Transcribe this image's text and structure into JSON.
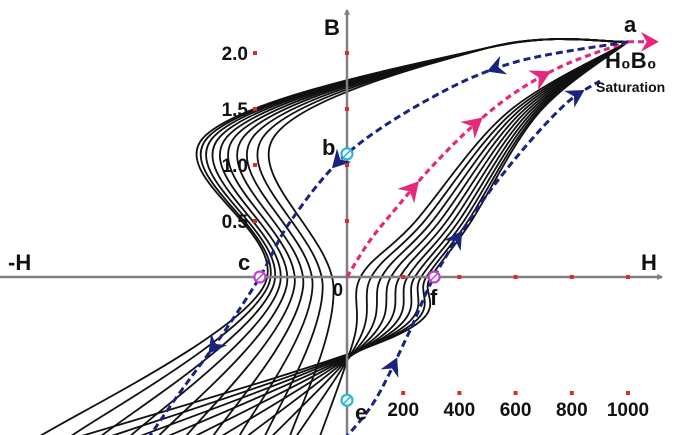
{
  "chart_data": {
    "type": "line",
    "title": "",
    "xlabel": "H",
    "xlabel_negative": "-H",
    "ylabel": "B",
    "origin_label": "0",
    "x_ticks": [
      200,
      400,
      600,
      800,
      1000
    ],
    "y_ticks": [
      "0.5",
      "1.0",
      "1.5",
      "2.0"
    ],
    "xlim": [
      -1220,
      1120
    ],
    "ylim": [
      -1.45,
      2.35
    ],
    "saturation": {
      "point_label": "a",
      "formula": "H₀B₀",
      "text": "Saturation"
    },
    "points": [
      {
        "label": "a",
        "x": 1000,
        "y": 2.1
      },
      {
        "label": "b",
        "x": 0,
        "y": 1.1
      },
      {
        "label": "c",
        "x": -310,
        "y": 0
      },
      {
        "label": "e",
        "x": 0,
        "y": -1.1
      },
      {
        "label": "f",
        "x": 310,
        "y": 0
      }
    ],
    "initial_magnetization_curve": [
      [
        0,
        0
      ],
      [
        80,
        0.32
      ],
      [
        180,
        0.63
      ],
      [
        300,
        0.98
      ],
      [
        440,
        1.33
      ],
      [
        600,
        1.65
      ],
      [
        780,
        1.9
      ],
      [
        1000,
        2.1
      ]
    ],
    "descending_branch": [
      [
        1000,
        2.1
      ],
      [
        600,
        1.92
      ],
      [
        300,
        1.6
      ],
      [
        0,
        1.1
      ],
      [
        -200,
        0.5
      ],
      [
        -310,
        0
      ],
      [
        -440,
        -0.5
      ],
      [
        -600,
        -1.05
      ],
      [
        -710,
        -1.45
      ]
    ],
    "ascending_branch": [
      [
        -10,
        -1.45
      ],
      [
        100,
        -1.1
      ],
      [
        220,
        -0.5
      ],
      [
        310,
        0
      ],
      [
        460,
        0.6
      ],
      [
        620,
        1.12
      ],
      [
        780,
        1.55
      ],
      [
        900,
        1.75
      ]
    ],
    "minor_loop_count": 10,
    "colors": {
      "major_loop": "#1a237e",
      "initial_curve": "#e6287a",
      "minor_loops": "#111111",
      "axes": "#808080",
      "tick_marks": "#d32f2f",
      "b_e_markers": "#29b6d9",
      "c_f_markers": "#c03fd6"
    }
  }
}
